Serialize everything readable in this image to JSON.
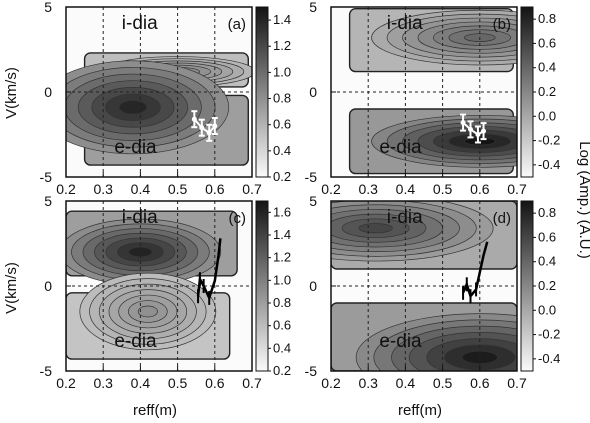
{
  "figure": {
    "y_axis_label": "V(km/s)",
    "x_axis_label": "reff(m)",
    "colorbar_label": "Log (Amp.) (A.U.)"
  },
  "chart_data": [
    {
      "type": "heatmap",
      "panel": "(a)",
      "xlim": [
        0.2,
        0.7
      ],
      "ylim": [
        -5,
        5
      ],
      "x_ticks": [
        "0.2",
        "0.3",
        "0.4",
        "0.5",
        "0.6",
        "0.7"
      ],
      "y_ticks": [
        "5",
        "0",
        "-5"
      ],
      "x_grid": [
        0.3,
        0.4,
        0.5,
        0.6
      ],
      "zero_line": 0,
      "region_labels": [
        "i-dia",
        "e-dia"
      ],
      "colorbar_ticks": [
        "1.4",
        "1.2",
        "1.0",
        "0.8",
        "0.6",
        "0.4",
        "0.2"
      ],
      "colorbar_range": [
        0.2,
        1.5
      ],
      "bands": [
        {
          "r0": 0.25,
          "r1": 0.69,
          "v0": 0.3,
          "v1": 2.3,
          "peak_r": 0.5,
          "peak_v": 1.2,
          "peak": 0.9
        },
        {
          "r0": 0.25,
          "r1": 0.69,
          "v0": -4.3,
          "v1": -0.2,
          "peak_r": 0.38,
          "peak_v": -0.9,
          "peak": 1.4
        }
      ],
      "marker": {
        "shape": "error-bars",
        "color": "white",
        "points": [
          [
            0.545,
            -1.6
          ],
          [
            0.565,
            -2.1
          ],
          [
            0.585,
            -2.4
          ],
          [
            0.6,
            -2.0
          ]
        ]
      }
    },
    {
      "type": "heatmap",
      "panel": "(b)",
      "xlim": [
        0.2,
        0.7
      ],
      "ylim": [
        -5,
        5
      ],
      "x_ticks": [
        "0.2",
        "0.3",
        "0.4",
        "0.5",
        "0.6",
        "0.7"
      ],
      "y_ticks": [
        "5",
        "0",
        "-5"
      ],
      "x_grid": [
        0.3,
        0.4,
        0.5,
        0.6
      ],
      "zero_line": 0,
      "region_labels": [
        "i-dia",
        "e-dia"
      ],
      "colorbar_ticks": [
        "0.8",
        "0.6",
        "0.4",
        "0.2",
        "0.0",
        "-0.2",
        "-0.4"
      ],
      "colorbar_range": [
        -0.5,
        0.9
      ],
      "bands": [
        {
          "r0": 0.25,
          "r1": 0.69,
          "v0": 1.2,
          "v1": 4.9,
          "peak_r": 0.6,
          "peak_v": 3.2,
          "peak": 0.4
        },
        {
          "r0": 0.25,
          "r1": 0.69,
          "v0": -4.8,
          "v1": -1.0,
          "peak_r": 0.6,
          "peak_v": -2.9,
          "peak": 0.9
        }
      ],
      "marker": {
        "shape": "error-bars",
        "color": "white",
        "points": [
          [
            0.555,
            -1.8
          ],
          [
            0.575,
            -2.2
          ],
          [
            0.595,
            -2.5
          ],
          [
            0.61,
            -2.3
          ]
        ]
      }
    },
    {
      "type": "heatmap",
      "panel": "(c)",
      "xlim": [
        0.2,
        0.7
      ],
      "ylim": [
        -5,
        5
      ],
      "x_ticks": [
        "0.2",
        "0.3",
        "0.4",
        "0.5",
        "0.6",
        "0.7"
      ],
      "y_ticks": [
        "5",
        "0",
        "-5"
      ],
      "x_grid": [
        0.3,
        0.4,
        0.5,
        0.6
      ],
      "zero_line": 0,
      "region_labels": [
        "i-dia",
        "e-dia"
      ],
      "colorbar_ticks": [
        "1.6",
        "1.4",
        "1.2",
        "1.0",
        "0.8",
        "0.6",
        "0.4",
        "0.2"
      ],
      "colorbar_range": [
        0.2,
        1.7
      ],
      "bands": [
        {
          "r0": 0.2,
          "r1": 0.66,
          "v0": 0.6,
          "v1": 4.4,
          "peak_r": 0.4,
          "peak_v": 2.0,
          "peak": 1.6
        },
        {
          "r0": 0.2,
          "r1": 0.64,
          "v0": -4.3,
          "v1": -0.4,
          "peak_r": 0.42,
          "peak_v": -1.5,
          "peak": 0.9
        }
      ],
      "marker": {
        "shape": "trace",
        "color": "black",
        "points": [
          [
            0.555,
            -0.6
          ],
          [
            0.56,
            0.4
          ],
          [
            0.57,
            0.0
          ],
          [
            0.585,
            -0.7
          ],
          [
            0.6,
            0.3
          ],
          [
            0.61,
            1.8
          ],
          [
            0.615,
            2.8
          ]
        ]
      }
    },
    {
      "type": "heatmap",
      "panel": "(d)",
      "xlim": [
        0.2,
        0.7
      ],
      "ylim": [
        -5,
        5
      ],
      "x_ticks": [
        "0.2",
        "0.3",
        "0.4",
        "0.5",
        "0.6",
        "0.7"
      ],
      "y_ticks": [
        "5",
        "0",
        "-5"
      ],
      "x_grid": [
        0.3,
        0.4,
        0.5,
        0.6
      ],
      "zero_line": 0,
      "region_labels": [
        "i-dia",
        "e-dia"
      ],
      "colorbar_ticks": [
        "0.8",
        "0.6",
        "0.4",
        "0.2",
        "0.0",
        "-0.2",
        "-0.4"
      ],
      "colorbar_range": [
        -0.5,
        0.9
      ],
      "bands": [
        {
          "r0": 0.2,
          "r1": 0.7,
          "v0": 1.0,
          "v1": 5.0,
          "peak_r": 0.32,
          "peak_v": 3.4,
          "peak": 0.6
        },
        {
          "r0": 0.2,
          "r1": 0.7,
          "v0": -5.0,
          "v1": -1.0,
          "peak_r": 0.6,
          "peak_v": -4.2,
          "peak": 0.85
        }
      ],
      "marker": {
        "shape": "trace",
        "color": "black",
        "points": [
          [
            0.555,
            -0.4
          ],
          [
            0.565,
            0.1
          ],
          [
            0.575,
            -0.6
          ],
          [
            0.59,
            -0.2
          ],
          [
            0.6,
            0.8
          ],
          [
            0.61,
            1.8
          ],
          [
            0.62,
            2.6
          ]
        ]
      }
    }
  ]
}
